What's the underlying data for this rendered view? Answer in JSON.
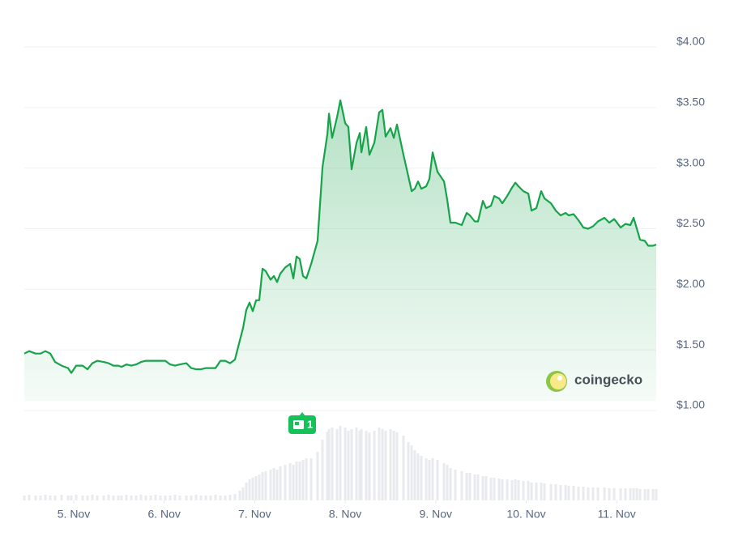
{
  "chart_data": {
    "type": "line",
    "x": [
      4.454,
      4.508,
      4.579,
      4.633,
      4.687,
      4.741,
      4.794,
      4.866,
      4.937,
      4.973,
      5.027,
      5.099,
      5.152,
      5.206,
      5.26,
      5.331,
      5.385,
      5.439,
      5.493,
      5.528,
      5.582,
      5.636,
      5.69,
      5.743,
      5.797,
      5.851,
      5.904,
      5.958,
      6.012,
      6.066,
      6.119,
      6.173,
      6.245,
      6.298,
      6.352,
      6.406,
      6.46,
      6.513,
      6.567,
      6.621,
      6.674,
      6.728,
      6.782,
      6.836,
      6.871,
      6.907,
      6.943,
      6.979,
      7.015,
      7.05,
      7.086,
      7.122,
      7.176,
      7.212,
      7.247,
      7.283,
      7.337,
      7.391,
      7.427,
      7.462,
      7.498,
      7.534,
      7.57,
      7.624,
      7.695,
      7.749,
      7.803,
      7.821,
      7.856,
      7.91,
      7.946,
      8.0,
      8.035,
      8.071,
      8.125,
      8.161,
      8.179,
      8.232,
      8.268,
      8.322,
      8.375,
      8.411,
      8.447,
      8.501,
      8.537,
      8.572,
      8.644,
      8.698,
      8.734,
      8.769,
      8.805,
      8.841,
      8.895,
      8.93,
      8.966,
      9.02,
      9.092,
      9.127,
      9.163,
      9.217,
      9.288,
      9.342,
      9.378,
      9.432,
      9.467,
      9.521,
      9.557,
      9.611,
      9.647,
      9.7,
      9.736,
      9.79,
      9.844,
      9.88,
      9.915,
      9.969,
      10.023,
      10.059,
      10.112,
      10.166,
      10.202,
      10.274,
      10.327,
      10.381,
      10.435,
      10.47,
      10.524,
      10.578,
      10.632,
      10.685,
      10.739,
      10.793,
      10.865,
      10.918,
      10.972,
      11.044,
      11.097,
      11.151,
      11.187,
      11.223,
      11.258,
      11.312,
      11.348,
      11.402,
      11.437
    ],
    "series": [
      {
        "color": "#16a34a",
        "values": [
          1.47,
          1.49,
          1.47,
          1.47,
          1.49,
          1.47,
          1.4,
          1.37,
          1.35,
          1.31,
          1.37,
          1.37,
          1.34,
          1.39,
          1.41,
          1.4,
          1.39,
          1.37,
          1.37,
          1.36,
          1.38,
          1.37,
          1.38,
          1.4,
          1.41,
          1.41,
          1.41,
          1.41,
          1.41,
          1.38,
          1.37,
          1.38,
          1.39,
          1.35,
          1.34,
          1.34,
          1.35,
          1.35,
          1.35,
          1.41,
          1.41,
          1.39,
          1.42,
          1.58,
          1.68,
          1.83,
          1.89,
          1.82,
          1.91,
          1.91,
          2.17,
          2.15,
          2.08,
          2.11,
          2.06,
          2.13,
          2.18,
          2.21,
          2.09,
          2.27,
          2.25,
          2.11,
          2.09,
          2.21,
          2.4,
          3.01,
          3.28,
          3.45,
          3.25,
          3.42,
          3.56,
          3.37,
          3.34,
          2.99,
          3.21,
          3.29,
          3.13,
          3.34,
          3.11,
          3.21,
          3.46,
          3.48,
          3.26,
          3.33,
          3.25,
          3.36,
          3.11,
          2.93,
          2.81,
          2.83,
          2.89,
          2.83,
          2.85,
          2.91,
          3.13,
          2.97,
          2.89,
          2.74,
          2.55,
          2.55,
          2.53,
          2.63,
          2.61,
          2.56,
          2.56,
          2.73,
          2.67,
          2.69,
          2.77,
          2.75,
          2.71,
          2.77,
          2.84,
          2.88,
          2.85,
          2.81,
          2.79,
          2.65,
          2.67,
          2.81,
          2.75,
          2.71,
          2.65,
          2.61,
          2.63,
          2.61,
          2.62,
          2.57,
          2.51,
          2.5,
          2.52,
          2.56,
          2.59,
          2.55,
          2.58,
          2.51,
          2.54,
          2.53,
          2.59,
          2.5,
          2.41,
          2.4,
          2.36,
          2.36,
          2.37
        ]
      }
    ],
    "volume": [
      6,
      7,
      6,
      6,
      7,
      6,
      6,
      7,
      6,
      6,
      7,
      6,
      6,
      7,
      6,
      6,
      7,
      6,
      6,
      6,
      7,
      6,
      6,
      7,
      6,
      6,
      7,
      6,
      6,
      6,
      7,
      6,
      6,
      6,
      7,
      6,
      6,
      6,
      7,
      6,
      6,
      7,
      8,
      12,
      16,
      22,
      26,
      28,
      30,
      32,
      35,
      36,
      38,
      40,
      38,
      42,
      44,
      46,
      44,
      48,
      48,
      50,
      52,
      52,
      60,
      75,
      85,
      88,
      90,
      88,
      92,
      90,
      86,
      88,
      90,
      86,
      88,
      86,
      84,
      86,
      90,
      88,
      86,
      88,
      86,
      84,
      80,
      72,
      68,
      62,
      58,
      55,
      52,
      50,
      52,
      50,
      46,
      44,
      40,
      38,
      36,
      34,
      34,
      32,
      32,
      30,
      30,
      28,
      28,
      27,
      26,
      26,
      25,
      26,
      25,
      24,
      24,
      22,
      22,
      22,
      21,
      20,
      20,
      19,
      19,
      18,
      18,
      17,
      17,
      16,
      16,
      16,
      16,
      15,
      15,
      15,
      15,
      15,
      15,
      15,
      14,
      14,
      14,
      14,
      14
    ],
    "xlim": [
      4.454,
      11.437
    ],
    "xticks": [
      {
        "value": 5,
        "label": "5. Nov"
      },
      {
        "value": 6,
        "label": "6. Nov"
      },
      {
        "value": 7,
        "label": "7. Nov"
      },
      {
        "value": 8,
        "label": "8. Nov"
      },
      {
        "value": 9,
        "label": "9. Nov"
      },
      {
        "value": 10,
        "label": "10. Nov"
      },
      {
        "value": 11,
        "label": "11. Nov"
      }
    ],
    "ylim": [
      1,
      4
    ],
    "yticks": [
      {
        "value": 1,
        "label": "$1.00"
      },
      {
        "value": 1.5,
        "label": "$1.50"
      },
      {
        "value": 2,
        "label": "$2.00"
      },
      {
        "value": 2.5,
        "label": "$2.50"
      },
      {
        "value": 3,
        "label": "$3.00"
      },
      {
        "value": 3.5,
        "label": "$3.50"
      },
      {
        "value": 4,
        "label": "$4.00"
      }
    ],
    "grid": true,
    "annotation": "1",
    "watermark": "coingecko"
  }
}
